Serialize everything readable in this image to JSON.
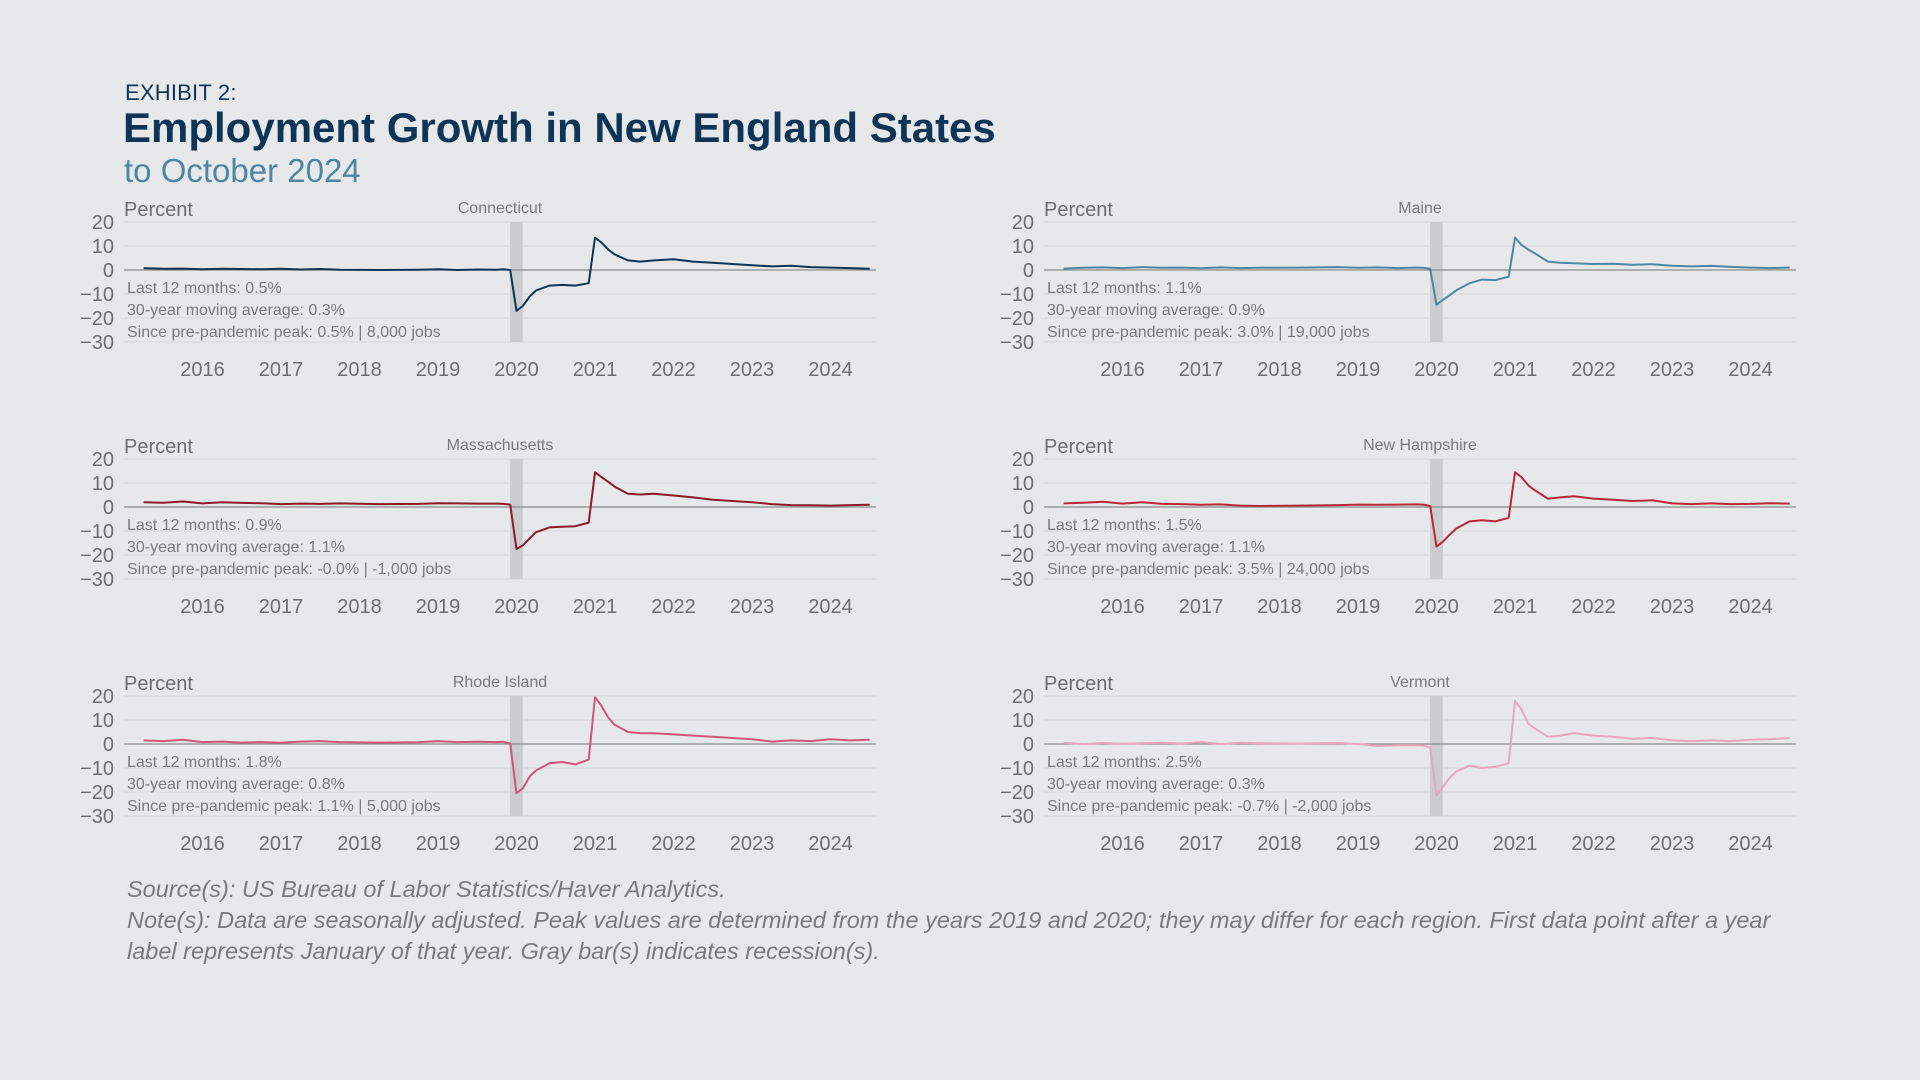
{
  "header": {
    "exhibit": "EXHIBIT 2:",
    "title": "Employment Growth in New England States",
    "subtitle": "to October 2024"
  },
  "colors": {
    "background": "#e7e8ea",
    "recession_bar": "#cbcccd",
    "zero_line": "#8a8a8a",
    "gridline": "#d6d7d9",
    "annotation_text": "#7a7a7a"
  },
  "chart_data": [
    {
      "type": "line",
      "title": "Connecticut",
      "ylabel": "Percent",
      "ylim": [
        -30,
        20
      ],
      "yticks": [
        "20",
        "10",
        "0",
        "−10",
        "−20",
        "−30"
      ],
      "xticks": [
        "2016",
        "2017",
        "2018",
        "2019",
        "2020",
        "2021",
        "2022",
        "2023",
        "2024"
      ],
      "recession": [
        2020.17,
        2020.33
      ],
      "color": "#0e3556",
      "stats": [
        "Last 12 months: 0.5%",
        "30-year moving average: 0.3%",
        "Since pre-pandemic peak: 0.5% | 8,000 jobs"
      ],
      "series": [
        {
          "x": [
            2015.5,
            2015.75,
            2016.0,
            2016.25,
            2016.5,
            2016.75,
            2017.0,
            2017.25,
            2017.5,
            2017.75,
            2018.0,
            2018.5,
            2019.0,
            2019.25,
            2019.5,
            2019.75,
            2020.0,
            2020.08,
            2020.17,
            2020.25,
            2020.33,
            2020.42,
            2020.5,
            2020.67,
            2020.83,
            2021.0,
            2021.17,
            2021.25,
            2021.33,
            2021.42,
            2021.5,
            2021.67,
            2021.83,
            2022.0,
            2022.25,
            2022.5,
            2022.75,
            2023.0,
            2023.25,
            2023.5,
            2023.75,
            2024.0,
            2024.25,
            2024.5,
            2024.75
          ],
          "y": [
            0.8,
            0.5,
            0.6,
            0.3,
            0.5,
            0.4,
            0.3,
            0.5,
            0.2,
            0.4,
            0.1,
            0.0,
            0.1,
            0.3,
            0.0,
            0.2,
            0.1,
            0.3,
            0.0,
            -17.0,
            -15.0,
            -11.0,
            -8.5,
            -6.5,
            -6.2,
            -6.5,
            -5.5,
            13.5,
            11.5,
            8.5,
            6.5,
            4.0,
            3.5,
            4.0,
            4.5,
            3.5,
            3.0,
            2.5,
            2.0,
            1.5,
            1.8,
            1.2,
            1.0,
            0.8,
            0.5
          ]
        }
      ]
    },
    {
      "type": "line",
      "title": "Maine",
      "ylabel": "Percent",
      "ylim": [
        -30,
        20
      ],
      "yticks": [
        "20",
        "10",
        "0",
        "−10",
        "−20",
        "−30"
      ],
      "xticks": [
        "2016",
        "2017",
        "2018",
        "2019",
        "2020",
        "2021",
        "2022",
        "2023",
        "2024"
      ],
      "recession": [
        2020.17,
        2020.33
      ],
      "color": "#4d87a3",
      "stats": [
        "Last 12 months: 1.1%",
        "30-year moving average: 0.9%",
        "Since pre-pandemic peak: 3.0% | 19,000 jobs"
      ],
      "series": [
        {
          "x": [
            2015.5,
            2015.75,
            2016.0,
            2016.25,
            2016.5,
            2016.75,
            2017.0,
            2017.25,
            2017.5,
            2017.75,
            2018.0,
            2018.5,
            2019.0,
            2019.25,
            2019.5,
            2019.75,
            2020.0,
            2020.08,
            2020.17,
            2020.25,
            2020.33,
            2020.42,
            2020.5,
            2020.67,
            2020.83,
            2021.0,
            2021.17,
            2021.25,
            2021.33,
            2021.42,
            2021.5,
            2021.67,
            2021.83,
            2022.0,
            2022.25,
            2022.5,
            2022.75,
            2023.0,
            2023.25,
            2023.5,
            2023.75,
            2024.0,
            2024.25,
            2024.5,
            2024.75
          ],
          "y": [
            0.6,
            0.9,
            1.1,
            0.8,
            1.2,
            0.9,
            1.0,
            0.7,
            1.1,
            0.8,
            0.9,
            1.0,
            1.2,
            0.9,
            1.1,
            0.8,
            1.0,
            0.9,
            0.5,
            -14.5,
            -12.5,
            -10.5,
            -8.5,
            -5.5,
            -4.0,
            -4.2,
            -2.8,
            13.5,
            10.5,
            8.5,
            7.0,
            3.5,
            3.0,
            2.8,
            2.5,
            2.6,
            2.2,
            2.4,
            1.8,
            1.5,
            1.7,
            1.3,
            1.0,
            0.8,
            1.0
          ]
        }
      ]
    },
    {
      "type": "line",
      "title": "Massachusetts",
      "ylabel": "Percent",
      "ylim": [
        -30,
        20
      ],
      "yticks": [
        "20",
        "10",
        "0",
        "−10",
        "−20",
        "−30"
      ],
      "xticks": [
        "2016",
        "2017",
        "2018",
        "2019",
        "2020",
        "2021",
        "2022",
        "2023",
        "2024"
      ],
      "recession": [
        2020.17,
        2020.33
      ],
      "color": "#8b1a2b",
      "stats": [
        "Last 12 months: 0.9%",
        "30-year moving average: 1.1%",
        "Since pre-pandemic peak: -0.0% | -1,000 jobs"
      ],
      "series": [
        {
          "x": [
            2015.5,
            2015.75,
            2016.0,
            2016.25,
            2016.5,
            2016.75,
            2017.0,
            2017.25,
            2017.5,
            2017.75,
            2018.0,
            2018.5,
            2019.0,
            2019.25,
            2019.5,
            2019.75,
            2020.0,
            2020.08,
            2020.17,
            2020.25,
            2020.33,
            2020.42,
            2020.5,
            2020.67,
            2020.83,
            2021.0,
            2021.17,
            2021.25,
            2021.33,
            2021.42,
            2021.5,
            2021.67,
            2021.83,
            2022.0,
            2022.25,
            2022.5,
            2022.75,
            2023.0,
            2023.25,
            2023.5,
            2023.75,
            2024.0,
            2024.25,
            2024.5,
            2024.75
          ],
          "y": [
            2.0,
            1.8,
            2.3,
            1.5,
            2.0,
            1.7,
            1.6,
            1.2,
            1.4,
            1.3,
            1.5,
            1.2,
            1.3,
            1.6,
            1.5,
            1.4,
            1.4,
            1.3,
            1.0,
            -17.5,
            -16.0,
            -13.0,
            -10.5,
            -8.5,
            -8.2,
            -8.0,
            -6.5,
            14.5,
            12.5,
            10.5,
            8.5,
            5.5,
            5.2,
            5.5,
            4.8,
            4.0,
            3.0,
            2.5,
            2.0,
            1.2,
            0.8,
            0.7,
            0.6,
            0.8,
            0.9
          ]
        }
      ]
    },
    {
      "type": "line",
      "title": "New Hampshire",
      "ylabel": "Percent",
      "ylim": [
        -30,
        20
      ],
      "yticks": [
        "20",
        "10",
        "0",
        "−10",
        "−20",
        "−30"
      ],
      "xticks": [
        "2016",
        "2017",
        "2018",
        "2019",
        "2020",
        "2021",
        "2022",
        "2023",
        "2024"
      ],
      "recession": [
        2020.17,
        2020.33
      ],
      "color": "#b8283c",
      "stats": [
        "Last 12 months: 1.5%",
        "30-year moving average: 1.1%",
        "Since pre-pandemic peak: 3.5% | 24,000 jobs"
      ],
      "series": [
        {
          "x": [
            2015.5,
            2015.75,
            2016.0,
            2016.25,
            2016.5,
            2016.75,
            2017.0,
            2017.25,
            2017.5,
            2017.75,
            2018.0,
            2018.5,
            2019.0,
            2019.25,
            2019.5,
            2019.75,
            2020.0,
            2020.08,
            2020.17,
            2020.25,
            2020.33,
            2020.42,
            2020.5,
            2020.67,
            2020.83,
            2021.0,
            2021.17,
            2021.25,
            2021.33,
            2021.42,
            2021.5,
            2021.67,
            2021.83,
            2022.0,
            2022.25,
            2022.5,
            2022.75,
            2023.0,
            2023.25,
            2023.5,
            2023.75,
            2024.0,
            2024.25,
            2024.5,
            2024.75
          ],
          "y": [
            1.5,
            1.8,
            2.2,
            1.4,
            2.0,
            1.3,
            1.2,
            0.9,
            1.1,
            0.6,
            0.4,
            0.6,
            0.8,
            1.0,
            0.9,
            1.0,
            1.1,
            1.0,
            0.4,
            -16.5,
            -14.5,
            -11.5,
            -9.0,
            -6.0,
            -5.5,
            -6.0,
            -4.5,
            14.5,
            12.5,
            9.0,
            7.0,
            3.5,
            4.0,
            4.5,
            3.5,
            3.0,
            2.5,
            2.8,
            1.5,
            1.2,
            1.5,
            1.2,
            1.3,
            1.6,
            1.4
          ]
        }
      ]
    },
    {
      "type": "line",
      "title": "Rhode Island",
      "ylabel": "Percent",
      "ylim": [
        -30,
        20
      ],
      "yticks": [
        "20",
        "10",
        "0",
        "−10",
        "−20",
        "−30"
      ],
      "xticks": [
        "2016",
        "2017",
        "2018",
        "2019",
        "2020",
        "2021",
        "2022",
        "2023",
        "2024"
      ],
      "recession": [
        2020.17,
        2020.33
      ],
      "color": "#d1557a",
      "stats": [
        "Last 12 months: 1.8%",
        "30-year moving average: 0.8%",
        "Since pre-pandemic peak: 1.1% | 5,000 jobs"
      ],
      "series": [
        {
          "x": [
            2015.5,
            2015.75,
            2016.0,
            2016.25,
            2016.5,
            2016.75,
            2017.0,
            2017.25,
            2017.5,
            2017.75,
            2018.0,
            2018.5,
            2019.0,
            2019.25,
            2019.5,
            2019.75,
            2020.0,
            2020.08,
            2020.17,
            2020.25,
            2020.33,
            2020.42,
            2020.5,
            2020.67,
            2020.83,
            2021.0,
            2021.17,
            2021.25,
            2021.33,
            2021.42,
            2021.5,
            2021.67,
            2021.83,
            2022.0,
            2022.25,
            2022.5,
            2022.75,
            2023.0,
            2023.25,
            2023.5,
            2023.75,
            2024.0,
            2024.25,
            2024.5,
            2024.75
          ],
          "y": [
            1.5,
            1.2,
            1.8,
            0.8,
            1.0,
            0.6,
            0.8,
            0.5,
            1.0,
            1.2,
            0.8,
            0.6,
            0.7,
            1.2,
            0.8,
            0.9,
            0.8,
            0.9,
            0.2,
            -20.5,
            -18.5,
            -13.5,
            -11.0,
            -8.0,
            -7.5,
            -8.5,
            -6.5,
            19.5,
            16.0,
            11.0,
            8.0,
            5.0,
            4.5,
            4.5,
            4.0,
            3.5,
            3.0,
            2.5,
            2.0,
            1.0,
            1.5,
            1.2,
            2.0,
            1.5,
            1.8
          ]
        }
      ]
    },
    {
      "type": "line",
      "title": "Vermont",
      "ylabel": "Percent",
      "ylim": [
        -30,
        20
      ],
      "yticks": [
        "20",
        "10",
        "0",
        "−10",
        "−20",
        "−30"
      ],
      "xticks": [
        "2016",
        "2017",
        "2018",
        "2019",
        "2020",
        "2021",
        "2022",
        "2023",
        "2024"
      ],
      "recession": [
        2020.17,
        2020.33
      ],
      "color": "#eaa6bb",
      "stats": [
        "Last 12 months: 2.5%",
        "30-year moving average: 0.3%",
        "Since pre-pandemic peak: -0.7% | -2,000 jobs"
      ],
      "series": [
        {
          "x": [
            2015.5,
            2015.75,
            2016.0,
            2016.25,
            2016.5,
            2016.75,
            2017.0,
            2017.25,
            2017.5,
            2017.75,
            2018.0,
            2018.5,
            2019.0,
            2019.25,
            2019.5,
            2019.75,
            2020.0,
            2020.08,
            2020.17,
            2020.25,
            2020.33,
            2020.42,
            2020.5,
            2020.67,
            2020.83,
            2021.0,
            2021.17,
            2021.25,
            2021.33,
            2021.42,
            2021.5,
            2021.67,
            2021.83,
            2022.0,
            2022.25,
            2022.5,
            2022.75,
            2023.0,
            2023.25,
            2023.5,
            2023.75,
            2024.0,
            2024.25,
            2024.5,
            2024.75
          ],
          "y": [
            0.5,
            0.0,
            0.4,
            0.1,
            0.3,
            0.5,
            0.2,
            0.8,
            0.0,
            0.5,
            0.3,
            0.2,
            0.4,
            0.0,
            -0.8,
            -0.5,
            -0.5,
            -0.6,
            -1.5,
            -21.5,
            -18.0,
            -14.0,
            -11.5,
            -9.0,
            -10.0,
            -9.5,
            -8.0,
            18.0,
            14.5,
            8.5,
            6.5,
            3.0,
            3.5,
            4.5,
            3.5,
            3.0,
            2.2,
            2.5,
            1.5,
            1.2,
            1.5,
            1.2,
            1.8,
            2.0,
            2.5
          ]
        }
      ]
    }
  ],
  "notes": {
    "source": "Source(s): US Bureau of Labor Statistics/Haver Analytics.",
    "note_line1": "Note(s): Data are seasonally adjusted. Peak values are determined from the years 2019 and 2020; they may differ for each region. First data point after a year",
    "note_line2": "label represents January of that year. Gray bar(s) indicates recession(s)."
  }
}
